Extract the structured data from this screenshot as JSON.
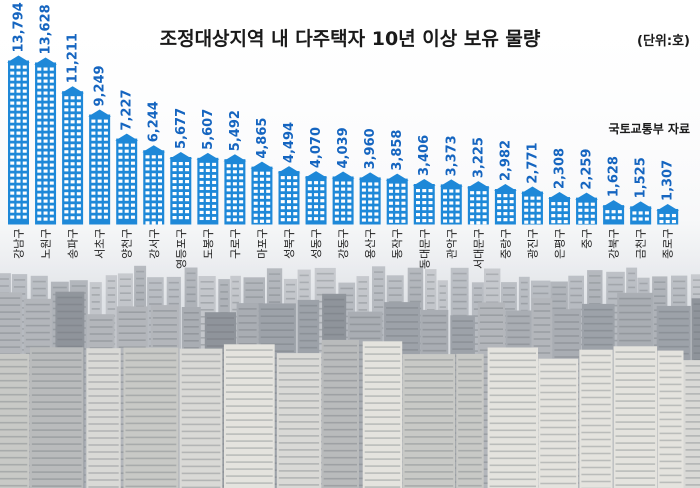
{
  "chart_data": {
    "type": "bar",
    "title": "조정대상지역 내 다주택자 10년 이상 보유 물량",
    "unit": "(단위:호)",
    "source": "국토교통부 자료",
    "categories": [
      "강남구",
      "노원구",
      "송파구",
      "서초구",
      "양천구",
      "강서구",
      "영등포구",
      "도봉구",
      "구로구",
      "마포구",
      "성북구",
      "성동구",
      "강동구",
      "용산구",
      "동작구",
      "동대문구",
      "관악구",
      "서대문구",
      "중랑구",
      "광진구",
      "은평구",
      "중구",
      "강북구",
      "금천구",
      "종로구"
    ],
    "values": [
      13794,
      13628,
      11211,
      9249,
      7227,
      6244,
      5677,
      5607,
      5492,
      4865,
      4494,
      4070,
      4039,
      3960,
      3858,
      3406,
      3373,
      3225,
      2982,
      2771,
      2308,
      2259,
      1628,
      1525,
      1307
    ],
    "value_labels": [
      "13,794",
      "13,628",
      "11,211",
      "9,249",
      "7,227",
      "6,244",
      "5,677",
      "5,607",
      "5,492",
      "4,865",
      "4,494",
      "4,070",
      "4,039",
      "3,960",
      "3,858",
      "3,406",
      "3,373",
      "3,225",
      "2,982",
      "2,771",
      "2,308",
      "2,259",
      "1,628",
      "1,525",
      "1,307"
    ],
    "colors": {
      "bar": "#1e88d8",
      "bar_window": "#ffffff",
      "label": "#1565c0",
      "title": "#1a1a1a"
    },
    "grid": false,
    "legend": "none"
  },
  "background": {
    "image": "city-apartments-photo"
  }
}
